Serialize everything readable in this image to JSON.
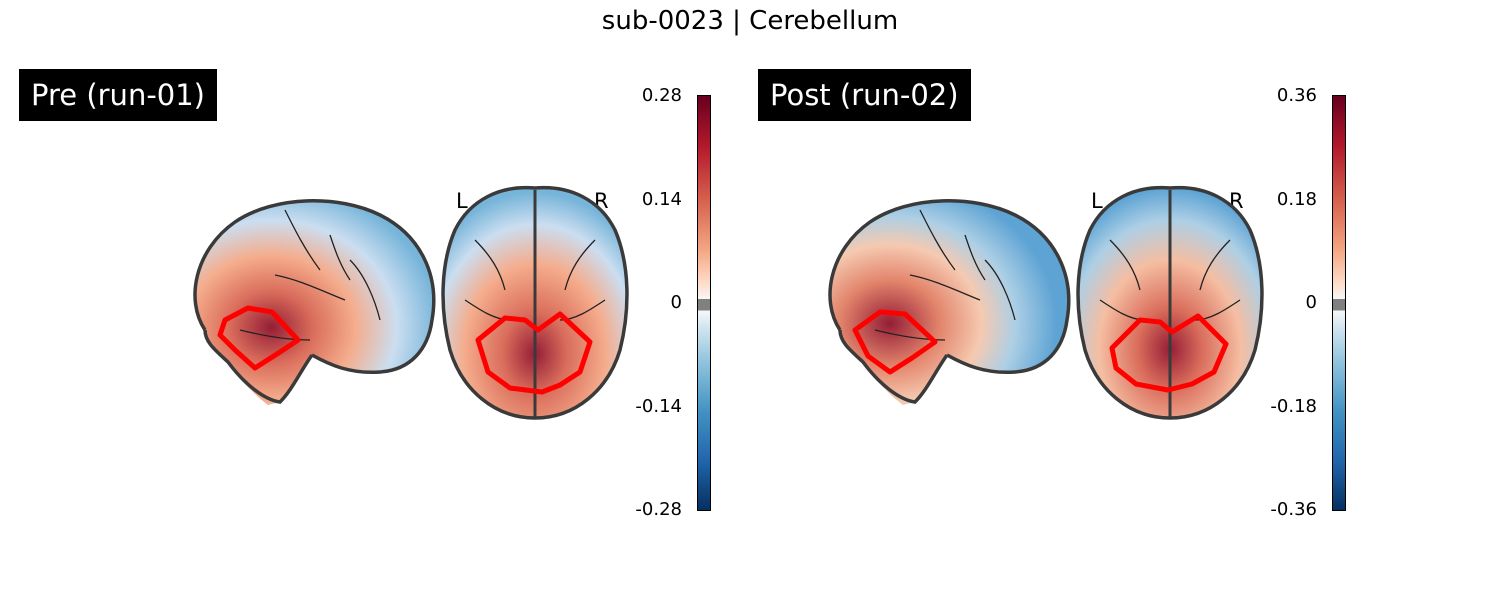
{
  "title": "sub-0023 | Cerebellum",
  "panels": [
    {
      "label": "Pre (run-01)",
      "colorbar_ticks": [
        "0.28",
        "0.14",
        "0",
        "-0.14",
        "-0.28"
      ],
      "orientation": {
        "left": "L",
        "right": "R"
      }
    },
    {
      "label": "Post (run-02)",
      "colorbar_ticks": [
        "0.36",
        "0.18",
        "0",
        "-0.18",
        "-0.36"
      ],
      "orientation": {
        "left": "L",
        "right": "R"
      }
    }
  ],
  "colors": {
    "roi_outline": "#ff0000",
    "brain_outline": "#3a3a3a",
    "positive_max": "#67001f",
    "negative_max": "#053061",
    "threshold_band": "#808080"
  }
}
